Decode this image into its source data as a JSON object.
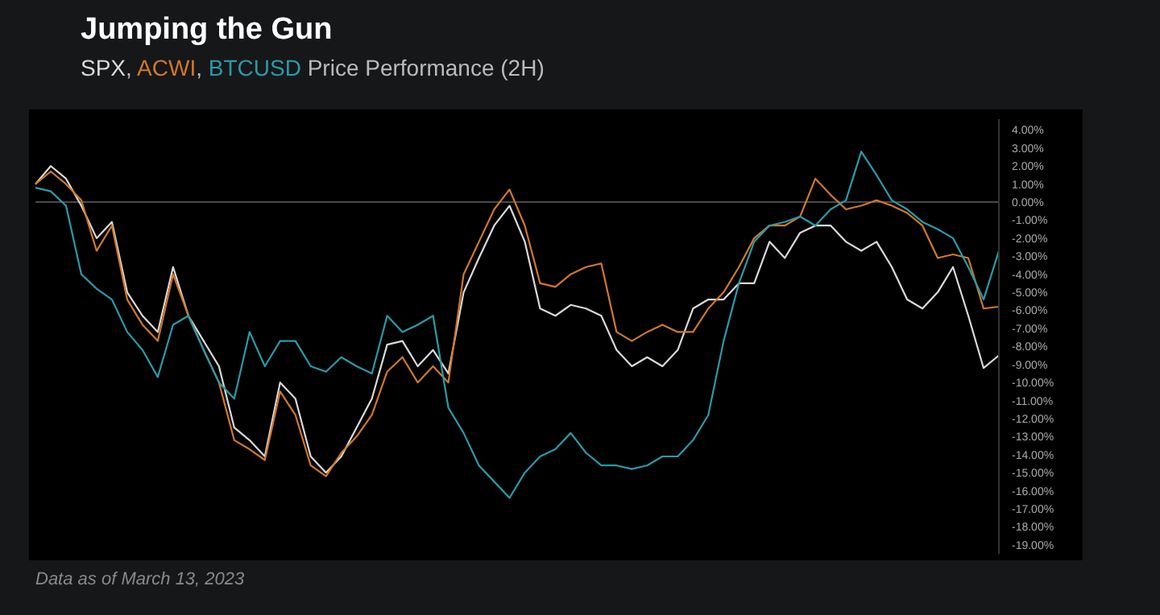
{
  "chart_data": {
    "type": "line",
    "title": "Jumping the Gun",
    "subtitle": "SPX, ACWI, BTCUSD Price Performance (2H)",
    "categories": [
      null,
      null,
      null,
      null,
      null,
      null,
      null,
      null,
      null,
      null,
      null,
      null,
      null,
      null,
      null,
      null,
      null,
      null,
      null,
      null,
      null,
      null,
      null,
      null,
      null,
      null,
      null,
      null,
      null,
      null,
      null,
      null,
      null,
      null,
      null,
      null,
      null,
      null,
      null,
      null,
      null,
      null,
      null,
      null,
      null,
      null,
      null,
      null,
      null,
      null,
      null,
      null,
      null,
      null,
      null,
      null,
      null,
      null,
      null,
      null,
      null,
      null,
      null,
      null
    ],
    "series": [
      {
        "color": "#d9d9d9",
        "values": [
          1.0,
          2.0,
          1.3,
          -0.2,
          -2.0,
          -1.1,
          -5.0,
          -6.3,
          -7.2,
          -3.6,
          -6.3,
          -7.7,
          -9.1,
          -12.5,
          -13.2,
          -14.1,
          -10.0,
          -10.9,
          -14.1,
          -15.0,
          -14.1,
          -12.5,
          -10.9,
          -7.9,
          -7.7,
          -9.1,
          -8.2,
          -9.5,
          -5.0,
          -3.1,
          -1.3,
          -0.2,
          -2.2,
          -5.9,
          -6.3,
          -5.7,
          -5.9,
          -6.3,
          -8.2,
          -9.1,
          -8.6,
          -9.1,
          -8.2,
          -5.9,
          -5.4,
          -5.4,
          -4.5,
          -4.5,
          -2.2,
          -3.1,
          -1.7,
          -1.3,
          -1.3,
          -2.2,
          -2.7,
          -2.2,
          -3.6,
          -5.4,
          -5.9,
          -5.0,
          -3.6,
          -6.3,
          -9.2,
          -8.5
        ]
      },
      {
        "color": "#d0782a",
        "values": [
          1.0,
          1.7,
          1.0,
          0.1,
          -2.7,
          -1.3,
          -5.4,
          -6.8,
          -7.7,
          -4.0,
          -6.3,
          -8.2,
          -10.0,
          -13.2,
          -13.7,
          -14.3,
          -10.5,
          -11.8,
          -14.6,
          -15.2,
          -13.9,
          -13.0,
          -11.8,
          -9.4,
          -8.6,
          -10.0,
          -9.1,
          -10.0,
          -4.0,
          -2.2,
          -0.4,
          0.7,
          -1.3,
          -4.5,
          -4.7,
          -4.0,
          -3.6,
          -3.4,
          -7.2,
          -7.7,
          -7.2,
          -6.8,
          -7.2,
          -7.2,
          -5.9,
          -5.0,
          -3.6,
          -2.0,
          -1.3,
          -1.3,
          -0.8,
          1.3,
          0.4,
          -0.4,
          -0.2,
          0.1,
          -0.2,
          -0.6,
          -1.3,
          -3.1,
          -2.9,
          -3.1,
          -5.9,
          -5.8
        ]
      },
      {
        "color": "#2a9aa8",
        "values": [
          0.8,
          0.6,
          -0.2,
          -4.0,
          -4.8,
          -5.4,
          -7.2,
          -8.2,
          -9.7,
          -6.8,
          -6.3,
          -8.2,
          -10.0,
          -10.9,
          -7.2,
          -9.1,
          -7.7,
          -7.7,
          -9.1,
          -9.4,
          -8.6,
          -9.1,
          -9.5,
          -6.3,
          -7.2,
          -6.8,
          -6.3,
          -11.4,
          -12.8,
          -14.6,
          -15.5,
          -16.4,
          -15.0,
          -14.1,
          -13.7,
          -12.8,
          -13.9,
          -14.6,
          -14.6,
          -14.8,
          -14.6,
          -14.1,
          -14.1,
          -13.2,
          -11.8,
          -7.7,
          -4.5,
          -2.2,
          -1.3,
          -1.1,
          -0.8,
          -1.3,
          -0.4,
          0.1,
          2.8,
          1.5,
          0.1,
          -0.4,
          -1.1,
          -1.5,
          -2.0,
          -3.6,
          -5.4,
          -2.7
        ]
      }
    ],
    "ylim": [
      -19.5,
      4.6
    ],
    "yticks": [
      {
        "value": 4,
        "label": "4.00%"
      },
      {
        "value": 3,
        "label": "3.00%"
      },
      {
        "value": 2,
        "label": "2.00%"
      },
      {
        "value": 1,
        "label": "1.00%"
      },
      {
        "value": 0,
        "label": "0.00%"
      },
      {
        "value": -1,
        "label": "-1.00%"
      },
      {
        "value": -2,
        "label": "-2.00%"
      },
      {
        "value": -3,
        "label": "-3.00%"
      },
      {
        "value": -4,
        "label": "-4.00%"
      },
      {
        "value": -5,
        "label": "-5.00%"
      },
      {
        "value": -6,
        "label": "-6.00%"
      },
      {
        "value": -7,
        "label": "-7.00%"
      },
      {
        "value": -8,
        "label": "-8.00%"
      },
      {
        "value": -9,
        "label": "-9.00%"
      },
      {
        "value": -10,
        "label": "-10.00%"
      },
      {
        "value": -11,
        "label": "-11.00%"
      },
      {
        "value": -12,
        "label": "-12.00%"
      },
      {
        "value": -13,
        "label": "-13.00%"
      },
      {
        "value": -14,
        "label": "-14.00%"
      },
      {
        "value": -15,
        "label": "-15.00%"
      },
      {
        "value": -16,
        "label": "-16.00%"
      },
      {
        "value": -17,
        "label": "-17.00%"
      },
      {
        "value": -18,
        "label": "-18.00%"
      },
      {
        "value": -19,
        "label": "-19.00%"
      }
    ],
    "tick_labels": "y",
    "ref_lines": [
      {
        "axis": "y",
        "value": 0,
        "color": "#4a4a4a"
      }
    ],
    "grid": false,
    "marker": "none",
    "line_style": "solid",
    "annotations": [
      "Data as of March 13, 2023"
    ]
  }
}
